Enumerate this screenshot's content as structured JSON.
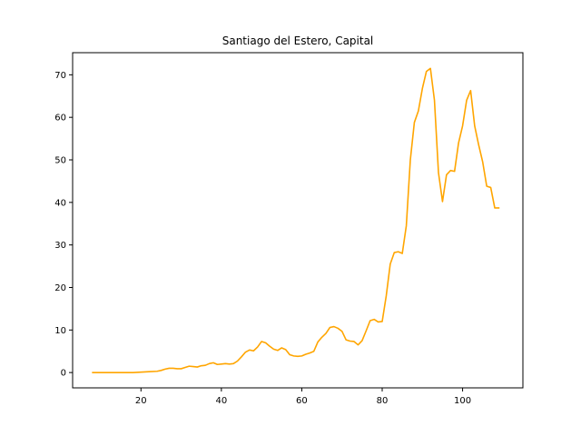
{
  "chart_data": {
    "type": "line",
    "title": "Santiago del Estero, Capital",
    "xlabel": "",
    "ylabel": "",
    "xlim": [
      3,
      115
    ],
    "ylim": [
      -3.6,
      75.2
    ],
    "xticks": [
      20,
      40,
      60,
      80,
      100
    ],
    "yticks": [
      0,
      10,
      20,
      30,
      40,
      50,
      60,
      70
    ],
    "grid": false,
    "series": [
      {
        "color": "#FFA500",
        "x": [
          8,
          10,
          12,
          14,
          16,
          18,
          20,
          22,
          24,
          25,
          26,
          27,
          28,
          29,
          30,
          31,
          32,
          33,
          34,
          35,
          36,
          37,
          38,
          39,
          40,
          41,
          42,
          43,
          44,
          45,
          46,
          47,
          48,
          49,
          50,
          51,
          52,
          53,
          54,
          55,
          56,
          57,
          58,
          59,
          60,
          61,
          62,
          63,
          64,
          65,
          66,
          67,
          68,
          69,
          70,
          71,
          72,
          73,
          74,
          75,
          76,
          77,
          78,
          79,
          80,
          81,
          82,
          83,
          84,
          85,
          86,
          87,
          88,
          89,
          90,
          91,
          92,
          93,
          94,
          95,
          96,
          97,
          98,
          99,
          100,
          101,
          102,
          103,
          104,
          105,
          106,
          107,
          108,
          109
        ],
        "y": [
          0,
          0,
          0,
          0,
          0,
          0,
          0.1,
          0.2,
          0.3,
          0.5,
          0.8,
          1.0,
          1.0,
          0.9,
          0.9,
          1.2,
          1.5,
          1.4,
          1.3,
          1.6,
          1.7,
          2.1,
          2.3,
          1.9,
          2.0,
          2.1,
          2.0,
          2.1,
          2.7,
          3.7,
          4.8,
          5.3,
          5.1,
          6.0,
          7.3,
          7.0,
          6.2,
          5.5,
          5.2,
          5.8,
          5.4,
          4.2,
          3.9,
          3.8,
          3.9,
          4.3,
          4.6,
          5.0,
          7.2,
          8.3,
          9.2,
          10.6,
          10.8,
          10.4,
          9.7,
          7.7,
          7.4,
          7.3,
          6.5,
          7.5,
          9.8,
          12.2,
          12.5,
          11.9,
          12.0,
          18.0,
          25.5,
          28.2,
          28.4,
          28.0,
          34.5,
          50.0,
          58.8,
          61.5,
          66.8,
          70.8,
          71.5,
          64.0,
          47.0,
          40.2,
          46.5,
          47.5,
          47.3,
          54.0,
          58.0,
          64.0,
          66.3,
          58.0,
          53.5,
          49.5,
          43.8,
          43.5,
          38.7,
          38.7
        ]
      }
    ]
  }
}
